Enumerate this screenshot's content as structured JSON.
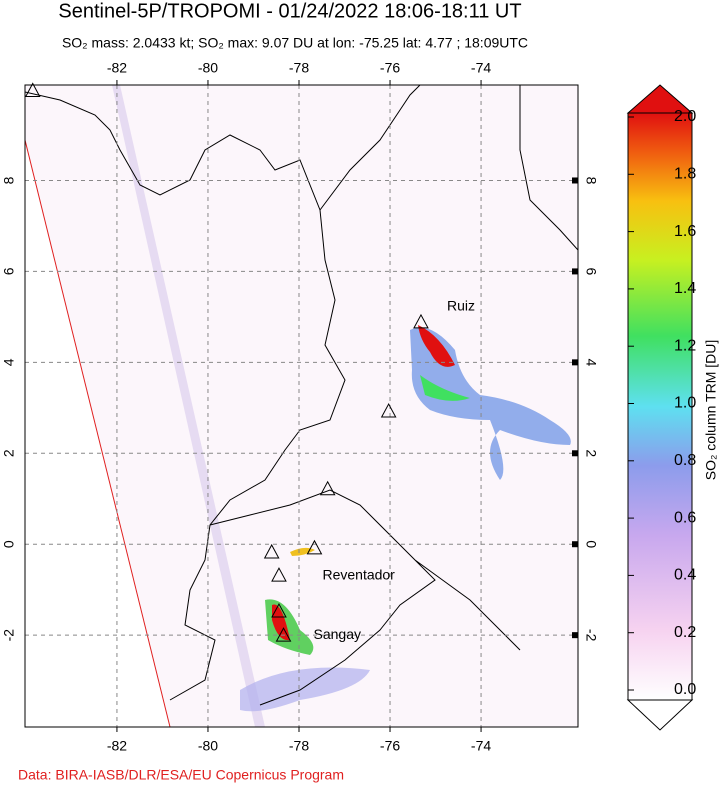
{
  "title": "Sentinel-5P/TROPOMI - 01/24/2022 18:06-18:11 UT",
  "subtitle": "SO₂ mass: 2.0433 kt; SO₂ max: 9.07 DU at lon: -75.25 lat: 4.77 ; 18:09UTC",
  "map": {
    "xlim": [
      -84.02,
      -71.87
    ],
    "ylim": [
      -4.02,
      10.1
    ],
    "xticks": [
      -82,
      -80,
      -78,
      -76,
      -74
    ],
    "yticks": [
      -2,
      0,
      2,
      4,
      6,
      8
    ],
    "volcanoes": [
      {
        "lon": -83.85,
        "lat": 9.98
      },
      {
        "name": "Ruiz",
        "lon": -75.32,
        "lat": 4.89
      },
      {
        "lon": -76.03,
        "lat": 2.93
      },
      {
        "lon": -77.37,
        "lat": 1.22
      },
      {
        "lon": -78.6,
        "lat": -0.17
      },
      {
        "name": "Reventador",
        "lon": -77.66,
        "lat": -0.08
      },
      {
        "lon": -78.44,
        "lat": -0.68
      },
      {
        "lon": -78.44,
        "lat": -1.47
      },
      {
        "name": "Sangay",
        "lon": -78.34,
        "lat": -2.0
      }
    ]
  },
  "colorbar": {
    "label": "SO₂ column TRM [DU]",
    "lim": [
      0,
      2
    ],
    "ticks": [
      {
        "value": 0,
        "label": "0.0"
      },
      0.2,
      0.4,
      0.6,
      0.8,
      {
        "value": 1,
        "label": "1.0"
      },
      1.2,
      1.4,
      1.6,
      1.8,
      {
        "value": 2,
        "label": "2.0"
      }
    ]
  },
  "credit": "Data: BIRA-IASB/DLR/ESA/EU Copernicus Program"
}
